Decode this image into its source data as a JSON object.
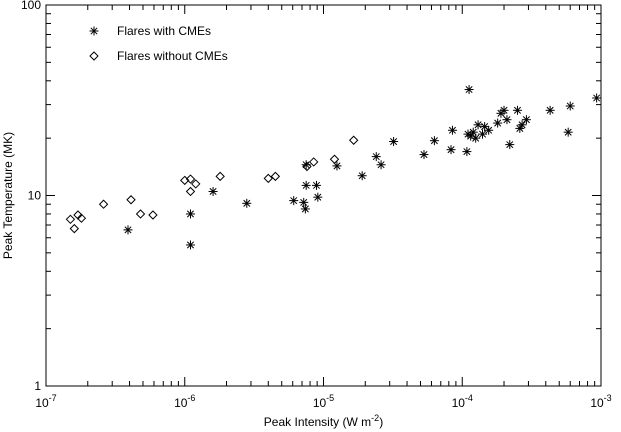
{
  "chart_data": {
    "type": "scatter",
    "xlabel": {
      "base": "Peak Intensity (W m",
      "sup": "-2",
      "tail": ")"
    },
    "ylabel": "Peak Temperature (MK)",
    "xscale": "log",
    "yscale": "log",
    "xlim": [
      1e-07,
      0.001
    ],
    "ylim": [
      1,
      100
    ],
    "grid": false,
    "legend_position": "top-left",
    "x_ticks": [
      {
        "base": "10",
        "exp": "-7"
      },
      {
        "base": "10",
        "exp": "-6"
      },
      {
        "base": "10",
        "exp": "-5"
      },
      {
        "base": "10",
        "exp": "-4"
      },
      {
        "base": "10",
        "exp": "-3"
      }
    ],
    "y_ticks": [
      "1",
      "10",
      "100"
    ],
    "series": [
      {
        "name": "Flares with CMEs",
        "marker": "asterisk",
        "points": [
          [
            3.9e-07,
            6.6
          ],
          [
            1.1e-06,
            5.5
          ],
          [
            1.1e-06,
            8.0
          ],
          [
            1.6e-06,
            10.5
          ],
          [
            2.8e-06,
            9.1
          ],
          [
            6.1e-06,
            9.4
          ],
          [
            7.2e-06,
            9.2
          ],
          [
            7.4e-06,
            8.5
          ],
          [
            7.5e-06,
            11.3
          ],
          [
            7.5e-06,
            14.5
          ],
          [
            8.9e-06,
            11.3
          ],
          [
            9.1e-06,
            9.8
          ],
          [
            1.25e-05,
            14.3
          ],
          [
            1.9e-05,
            12.7
          ],
          [
            2.4e-05,
            16.0
          ],
          [
            2.6e-05,
            14.5
          ],
          [
            3.2e-05,
            19.2
          ],
          [
            5.3e-05,
            16.4
          ],
          [
            6.3e-05,
            19.4
          ],
          [
            8.3e-05,
            17.4
          ],
          [
            8.5e-05,
            22.0
          ],
          [
            0.000108,
            17.0
          ],
          [
            0.00011,
            21.0
          ],
          [
            0.000112,
            36.0
          ],
          [
            0.000115,
            20.5
          ],
          [
            0.00012,
            21.5
          ],
          [
            0.000125,
            20.0
          ],
          [
            0.00013,
            23.5
          ],
          [
            0.00014,
            21.0
          ],
          [
            0.000145,
            23.0
          ],
          [
            0.000155,
            22.0
          ],
          [
            0.00018,
            24.0
          ],
          [
            0.00019,
            27.0
          ],
          [
            0.0002,
            28.0
          ],
          [
            0.00021,
            25.0
          ],
          [
            0.00022,
            18.5
          ],
          [
            0.00025,
            28.0
          ],
          [
            0.00026,
            22.5
          ],
          [
            0.00027,
            23.5
          ],
          [
            0.00029,
            25.0
          ],
          [
            0.00043,
            28.0
          ],
          [
            0.00058,
            21.5
          ],
          [
            0.0006,
            29.5
          ],
          [
            0.00093,
            32.5
          ]
        ]
      },
      {
        "name": "Flares without CMEs",
        "marker": "diamond",
        "points": [
          [
            1.5e-07,
            7.5
          ],
          [
            1.6e-07,
            6.7
          ],
          [
            1.7e-07,
            7.9
          ],
          [
            1.8e-07,
            7.6
          ],
          [
            2.6e-07,
            9.0
          ],
          [
            4.1e-07,
            9.5
          ],
          [
            4.8e-07,
            8.0
          ],
          [
            5.9e-07,
            7.9
          ],
          [
            1e-06,
            12.0
          ],
          [
            1.1e-06,
            10.5
          ],
          [
            1.1e-06,
            12.2
          ],
          [
            1.2e-06,
            11.5
          ],
          [
            1.8e-06,
            12.6
          ],
          [
            4e-06,
            12.3
          ],
          [
            4.5e-06,
            12.6
          ],
          [
            7.6e-06,
            14.2
          ],
          [
            8.5e-06,
            15.0
          ],
          [
            1.2e-05,
            15.5
          ],
          [
            1.65e-05,
            19.5
          ]
        ]
      }
    ]
  }
}
